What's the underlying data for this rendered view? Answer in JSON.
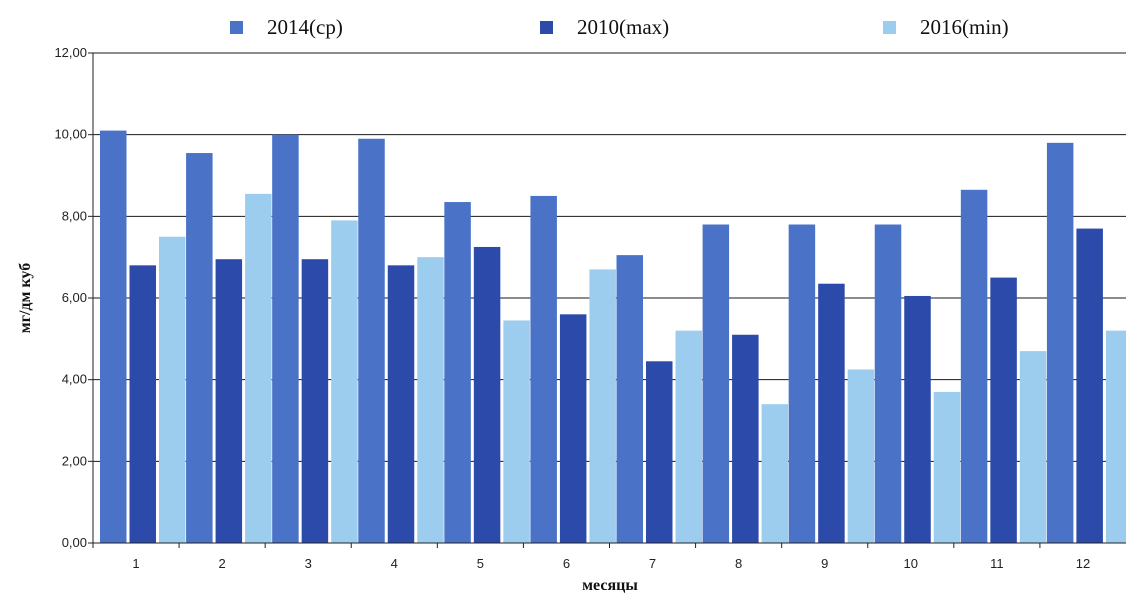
{
  "chart_data": {
    "type": "bar",
    "title": "",
    "xlabel": "месяцы",
    "ylabel": "мг/дм куб",
    "categories": [
      "1",
      "2",
      "3",
      "4",
      "5",
      "6",
      "7",
      "8",
      "9",
      "10",
      "11",
      "12"
    ],
    "ylim": [
      0,
      12
    ],
    "yticks": [
      "0,00",
      "2,00",
      "4,00",
      "6,00",
      "8,00",
      "10,00",
      "12,00"
    ],
    "grid": true,
    "legend_position": "top",
    "series": [
      {
        "name": "2014(ср)",
        "color": "#4a73c8",
        "values": [
          10.1,
          9.55,
          10.0,
          9.9,
          8.35,
          8.5,
          7.05,
          7.8,
          7.8,
          7.8,
          8.65,
          9.8
        ]
      },
      {
        "name": "2010(max)",
        "color": "#2b4aa9",
        "values": [
          6.8,
          6.95,
          6.95,
          6.8,
          7.25,
          5.6,
          4.45,
          5.1,
          6.35,
          6.05,
          6.5,
          7.7
        ]
      },
      {
        "name": "2016(min)",
        "color": "#9dcdee",
        "values": [
          7.5,
          8.55,
          7.9,
          7.0,
          5.45,
          6.7,
          5.2,
          3.4,
          4.25,
          3.7,
          4.7,
          5.2
        ]
      }
    ]
  }
}
